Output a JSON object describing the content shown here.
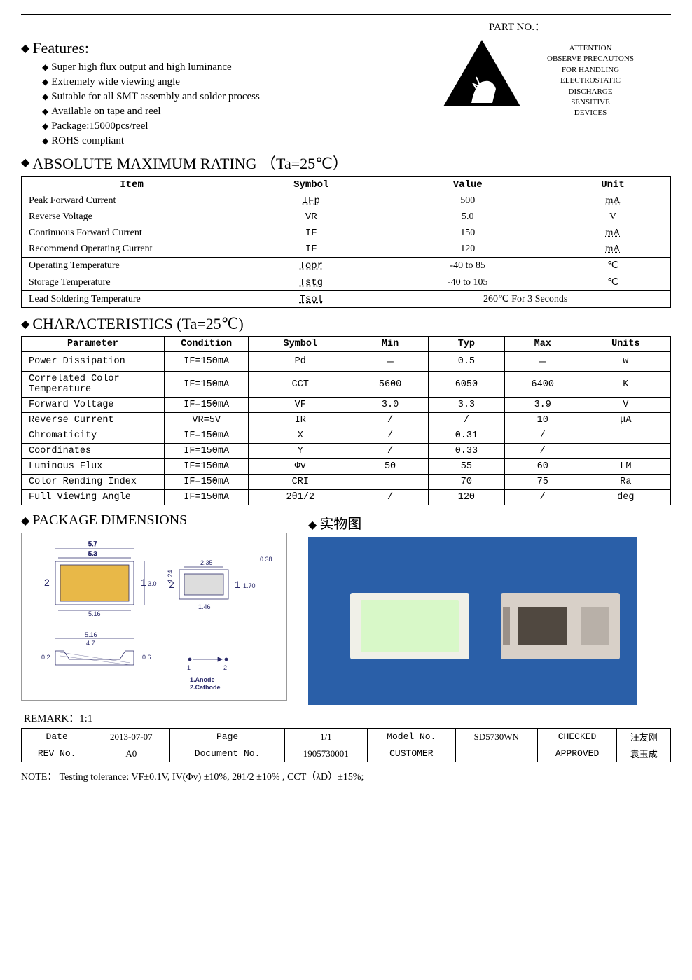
{
  "part_no_label": "PART   NO.：",
  "features_title": "Features:",
  "features": [
    "Super high flux output and high luminance",
    "Extremely wide viewing angle",
    "Suitable for all SMT assembly and solder process",
    "Available on tape and reel",
    "Package:15000pcs/reel",
    "ROHS compliant"
  ],
  "esd_lines": [
    "ATTENTION",
    "OBSERVE PRECAUTONS",
    "FOR HANDLING",
    "ELECTROSTATIC",
    "DISCHARGE",
    "SENSITIVE",
    "DEVICES"
  ],
  "abs_title": "ABSOLUTE   MAXIMUM   RATING    （Ta=25℃）",
  "abs_headers": [
    "Item",
    "Symbol",
    "Value",
    "Unit"
  ],
  "abs_rows": [
    {
      "item": "Peak Forward Current",
      "symbol": "IFp",
      "value": "500",
      "unit": "mA",
      "sym_under": true,
      "unit_under": true
    },
    {
      "item": "Reverse Voltage",
      "symbol": "VR",
      "value": "5.0",
      "unit": "V"
    },
    {
      "item": "Continuous Forward Current",
      "symbol": "IF",
      "value": "150",
      "unit": "mA",
      "unit_under": true
    },
    {
      "item": "Recommend Operating Current",
      "symbol": "IF",
      "value": "120",
      "unit": "mA",
      "unit_under": true
    },
    {
      "item": "Operating Temperature",
      "symbol": "Topr",
      "value": "-40 to 85",
      "unit": "℃",
      "sym_under": true
    },
    {
      "item": "Storage Temperature",
      "symbol": "Tstg",
      "value": "-40 to 105",
      "unit": "℃",
      "sym_under": true
    }
  ],
  "abs_last": {
    "item": "Lead Soldering Temperature",
    "symbol": "Tsol",
    "value": "260℃  For 3 Seconds",
    "sym_under": true
  },
  "char_title": "CHARACTERISTICS (Ta=25℃)",
  "char_headers": [
    "Parameter",
    "Condition",
    "Symbol",
    "Min",
    "Typ",
    "Max",
    "Units"
  ],
  "char_rows": [
    {
      "p": "Power Dissipation",
      "c": "IF=150mA",
      "s": "Pd",
      "min": "－",
      "typ": "0.5",
      "max": "－",
      "u": "w"
    },
    {
      "p": "Correlated Color Temperature",
      "c": "IF=150mA",
      "s": "CCT",
      "min": "5600",
      "typ": "6050",
      "max": "6400",
      "u": "K"
    },
    {
      "p": "Forward Voltage",
      "c": "IF=150mA",
      "s": "VF",
      "min": "3.0",
      "typ": "3.3",
      "max": "3.9",
      "u": "V"
    },
    {
      "p": "Reverse Current",
      "c": "VR=5V",
      "s": "IR",
      "min": "/",
      "typ": "/",
      "max": "10",
      "u": "μA"
    },
    {
      "p": "Chromaticity",
      "c": "IF=150mA",
      "s": "X",
      "min": "/",
      "typ": "0.31",
      "max": "/",
      "u": ""
    },
    {
      "p": "Coordinates",
      "c": "IF=150mA",
      "s": "Y",
      "min": "/",
      "typ": "0.33",
      "max": "/",
      "u": ""
    },
    {
      "p": "Luminous Flux",
      "c": "IF=150mA",
      "s": "Φv",
      "min": "50",
      "typ": "55",
      "max": "60",
      "u": "LM"
    },
    {
      "p": "Color Rending Index",
      "c": "IF=150mA",
      "s": "CRI",
      "min": "",
      "typ": "70",
      "max": "75",
      "u": "Ra"
    },
    {
      "p": "Full Viewing Angle",
      "c": "IF=150mA",
      "s": "2θ1/2",
      "min": "/",
      "typ": "120",
      "max": "/",
      "u": "deg"
    }
  ],
  "pkg_title": "PACKAGE   DIMENSIONS",
  "photo_title": "实物图",
  "pkg_dims": {
    "top_w_outer": "5.7",
    "top_w_inner": "5.3",
    "top_h": "3.0",
    "bottom_w": "5.16",
    "side_w": "2.35",
    "side_h": "1.24",
    "side_outer_h": "1.70",
    "side_t": "0.38",
    "side_bottom": "1.46",
    "foot_w": "5.16",
    "foot_inner": "4.7",
    "foot_h1": "0.2",
    "foot_h2": "0.6",
    "anode": "1.Anode",
    "cathode": "2.Cathode"
  },
  "remark": "REMARK：1:1",
  "footer": {
    "r1": [
      "Date",
      "2013-07-07",
      "Page",
      "1/1",
      "Model No.",
      "SD5730WN",
      "CHECKED",
      "汪友刚"
    ],
    "r2": [
      "REV No.",
      "A0",
      "Document No.",
      "1905730001",
      "CUSTOMER",
      "",
      "APPROVED",
      "袁玉成"
    ]
  },
  "note": "NOTE：  Testing tolerance: VF±0.1V,  IV(Φv) ±10%,  2θ1/2 ±10%  , CCT（λD）±15%;",
  "colors": {
    "bg": "#ffffff",
    "border": "#000000",
    "photo_bg": "#2a5fa8",
    "led_fill": "#d8f0a8",
    "led_border": "#fefefe",
    "diagram_border": "#999999",
    "pkg_yellow": "#e8b848"
  }
}
